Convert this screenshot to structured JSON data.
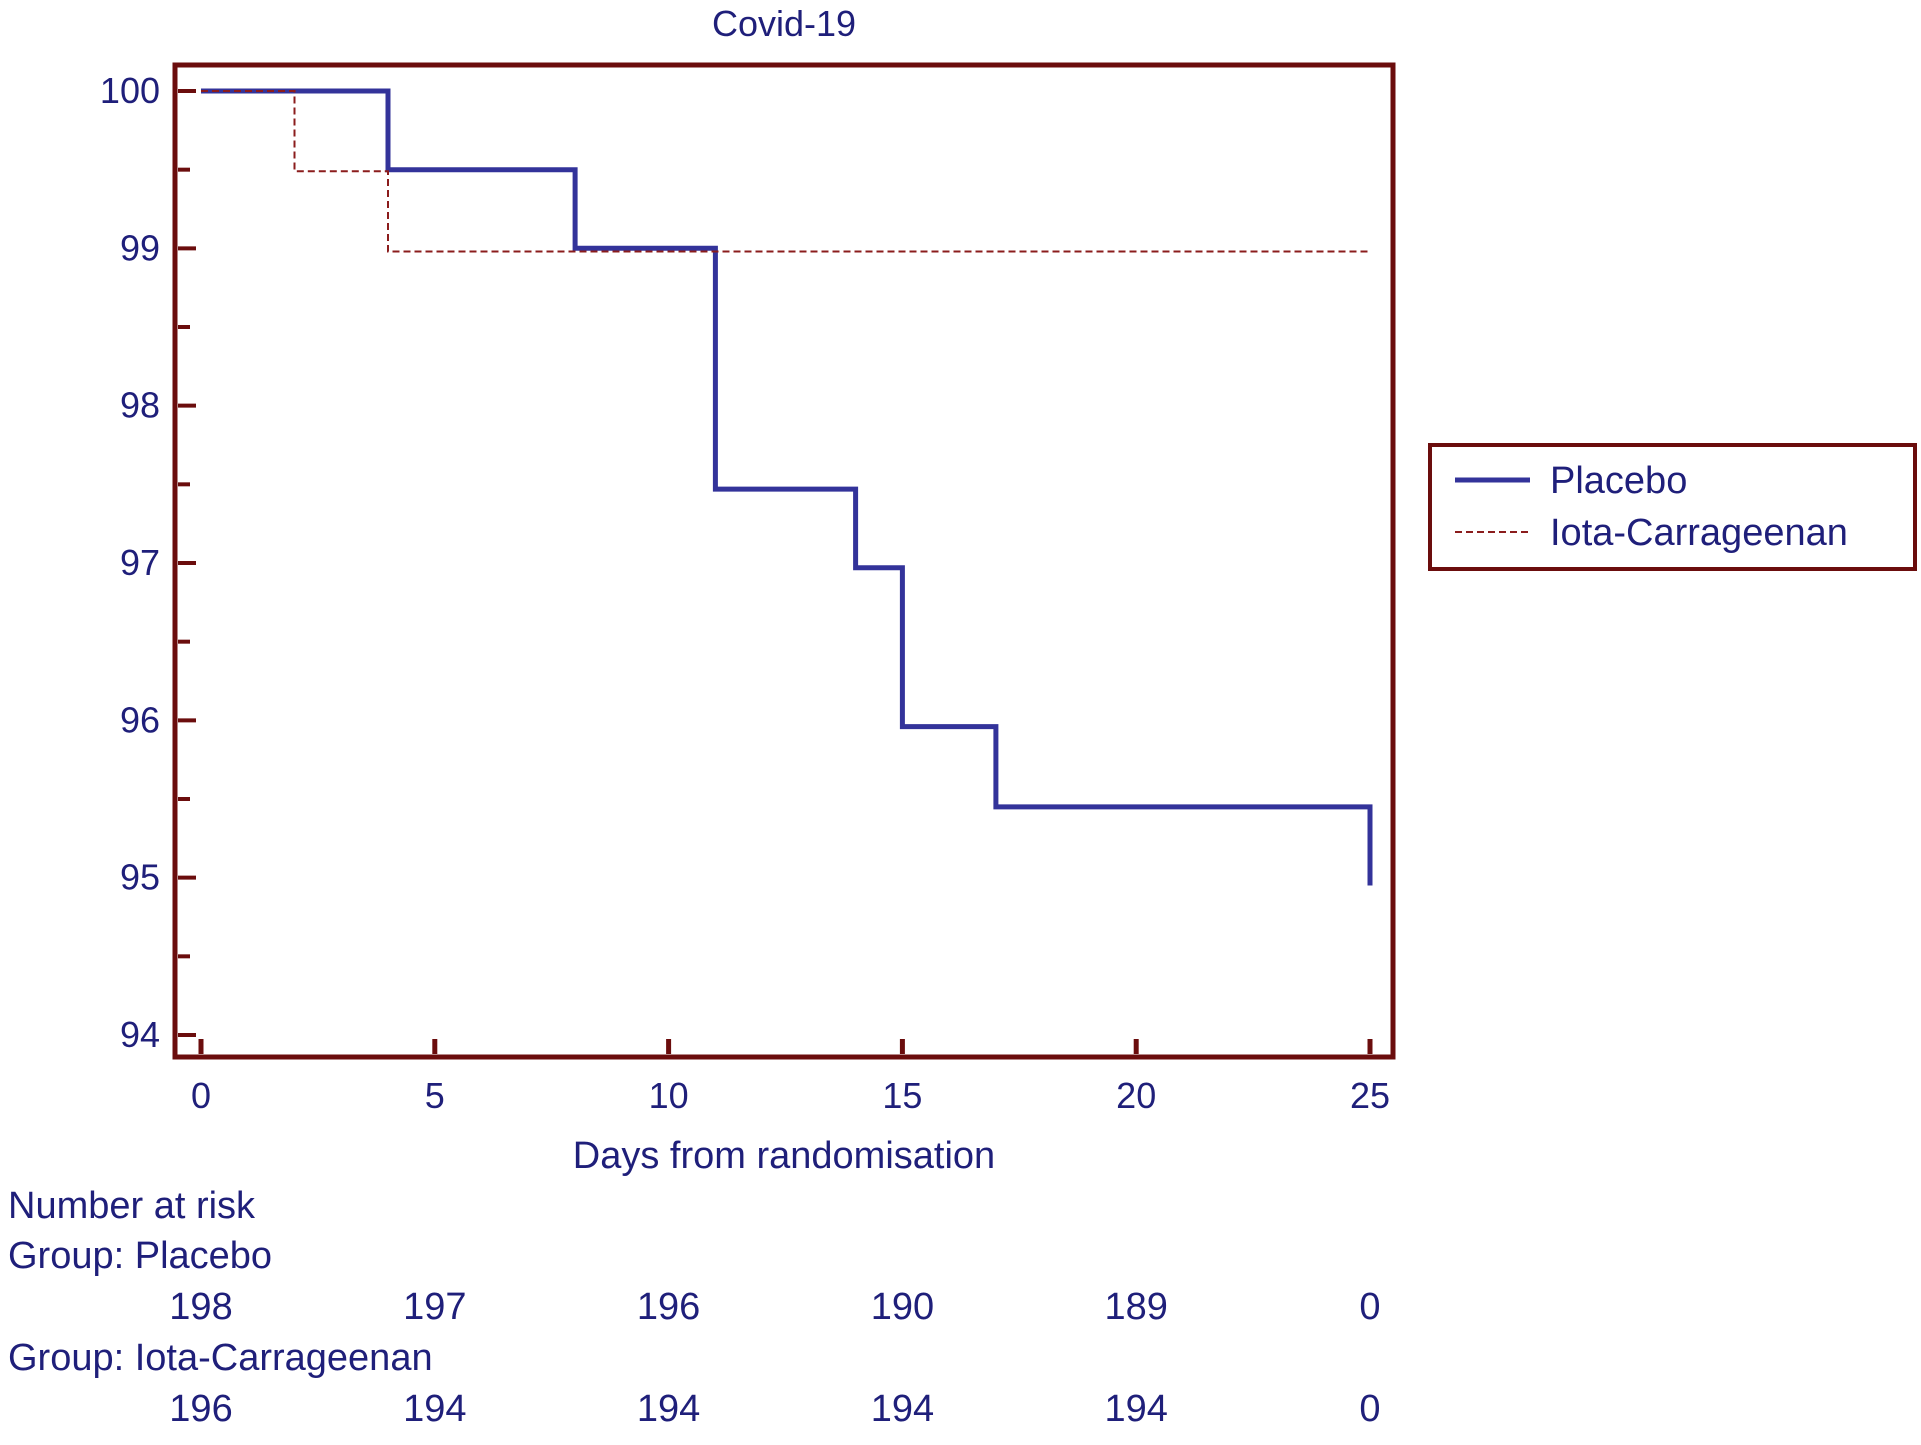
{
  "chart_data": {
    "type": "line",
    "subtype": "kaplan-meier step",
    "title": "Covid-19",
    "xlabel": "Days from randomisation",
    "ylabel": "",
    "xlim": [
      0,
      25
    ],
    "ylim": [
      94,
      100
    ],
    "xticks": [
      0,
      5,
      10,
      15,
      20,
      25
    ],
    "yticks": [
      94,
      95,
      96,
      97,
      98,
      99,
      100
    ],
    "grid": false,
    "legend_position": "right",
    "series": [
      {
        "name": "Placebo",
        "style": "solid",
        "color": "#33339a",
        "x": [
          0,
          4,
          4,
          8,
          8,
          11,
          11,
          14,
          14,
          15,
          15,
          17,
          17,
          25,
          25
        ],
        "y": [
          100,
          100,
          99.5,
          99.5,
          99,
          99,
          97.47,
          97.47,
          96.97,
          96.97,
          95.96,
          95.96,
          95.45,
          95.45,
          94.95
        ]
      },
      {
        "name": "Iota-Carrageenan",
        "style": "dashed",
        "color": "#8b1c1c",
        "x": [
          0,
          2,
          2,
          4,
          4,
          25
        ],
        "y": [
          100,
          100,
          99.49,
          99.49,
          98.98,
          98.98
        ]
      }
    ],
    "risk_table": {
      "heading": "Number at risk",
      "groups": [
        {
          "label": "Group: Placebo",
          "counts": [
            "198",
            "197",
            "196",
            "190",
            "189",
            "0"
          ]
        },
        {
          "label": "Group: Iota-Carrageenan",
          "counts": [
            "196",
            "194",
            "194",
            "194",
            "194",
            "0"
          ]
        }
      ]
    }
  },
  "colors": {
    "frame": "#6b0d0d",
    "text": "#1f1f7a"
  }
}
